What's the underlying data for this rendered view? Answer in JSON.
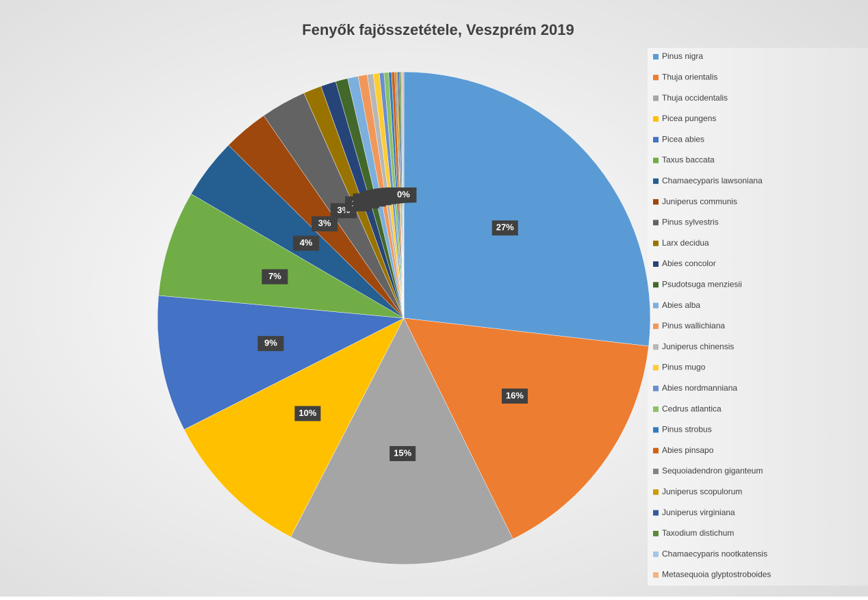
{
  "chart_data": {
    "type": "pie",
    "title": "Fenyők fajösszetétele, Veszprém 2019",
    "categories": [
      "Pinus nigra",
      "Thuja orientalis",
      "Thuja occidentalis",
      "Picea pungens",
      "Picea abies",
      "Taxus baccata",
      "Chamaecyparis lawsoniana",
      "Juniperus communis",
      "Pinus sylvestris",
      "Larx decidua",
      "Abies concolor",
      "Psudotsuga menziesii",
      "Abies alba",
      "Pinus wallichiana",
      "Juniperus chinensis",
      "Pinus mugo",
      "Abies nordmanniana",
      "Cedrus atlantica",
      "Pinus strobus",
      "Abies pinsapo",
      "Sequoiadendron giganteum",
      "Juniperus scopulorum",
      "Juniperus virginiana",
      "Taxodium distichum",
      "Chamaecyparis nootkatensis",
      "Metasequoia glyptostroboides"
    ],
    "values": [
      27,
      16,
      15,
      10,
      9,
      7,
      4,
      3,
      3,
      1.2,
      1.0,
      0.8,
      0.7,
      0.6,
      0.4,
      0.4,
      0.3,
      0.3,
      0.2,
      0.2,
      0.1,
      0.1,
      0.1,
      0.1,
      0.1,
      0.1
    ],
    "value_labels": [
      "27%",
      "16%",
      "15%",
      "10%",
      "9%",
      "7%",
      "4%",
      "3%",
      "3%",
      "1%",
      "1%",
      "1%",
      "1%",
      "1%",
      "0%",
      "0%",
      "0%",
      "0%",
      "0%",
      "0%",
      "0%",
      "0%",
      "0%",
      "0%",
      "0%",
      "0%"
    ],
    "colors": [
      "#5b9bd5",
      "#ed7d31",
      "#a5a5a5",
      "#ffc000",
      "#4472c4",
      "#70ad47",
      "#255e91",
      "#9e480e",
      "#636363",
      "#997300",
      "#264478",
      "#43682b",
      "#7cafdd",
      "#f1975a",
      "#b7b7b7",
      "#ffcd33",
      "#698ed0",
      "#8cc168",
      "#327dc2",
      "#d26012",
      "#848484",
      "#cc9a00",
      "#335aa1",
      "#5a8a39",
      "#a3c6e7",
      "#f4b183"
    ],
    "legend": "right"
  }
}
